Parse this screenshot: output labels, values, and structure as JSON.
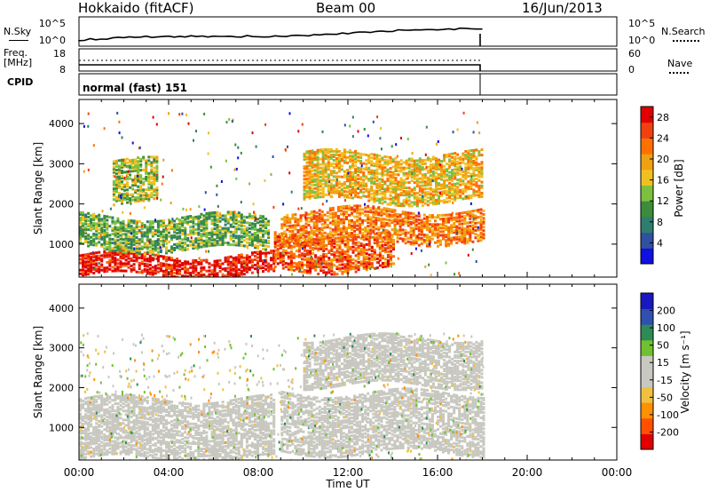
{
  "header": {
    "station": "Hokkaido (fitACF)",
    "beam": "Beam 00",
    "date": "16/Jun/2013"
  },
  "strip_labels": {
    "nsky": "N.Sky",
    "freq_line1": "Freq.",
    "freq_line2": "[MHz]",
    "cpid": "CPID",
    "nsearch": "N.Search",
    "nave": "Nave",
    "cpid_value": "normal (fast) 151"
  },
  "nsky_axis": {
    "left_ticks": [
      "10^5",
      "10^0"
    ],
    "right_ticks": [
      "10^5",
      "10^0"
    ]
  },
  "freq_axis": {
    "left_ticks": [
      "18",
      "8"
    ],
    "right_ticks": [
      "60",
      "0"
    ]
  },
  "colors": {
    "power": [
      "#1010e0",
      "#3050a0",
      "#2e7d6f",
      "#3c8c3c",
      "#7cc040",
      "#f0c020",
      "#f0a010",
      "#ff7000",
      "#f04010",
      "#e00000"
    ],
    "velocity": [
      "#e00000",
      "#ff5000",
      "#ff9000",
      "#f0c040",
      "#c8c8c0",
      "#c8c8c0",
      "#70c030",
      "#2e8b57",
      "#3050b0",
      "#1818c0"
    ],
    "ground_scatter": "#c8c8c0"
  },
  "chart_data": [
    {
      "type": "heatmap",
      "title": "Power",
      "xlabel": "Time UT",
      "ylabel": "Slant Range [km]",
      "xlim": [
        "00:00",
        "24:00"
      ],
      "ylim": [
        180,
        4600
      ],
      "x_ticks": [
        "00:00",
        "04:00",
        "08:00",
        "12:00",
        "16:00",
        "20:00",
        "00:00"
      ],
      "y_ticks": [
        1000,
        2000,
        3000,
        4000
      ],
      "colorbar": {
        "label": "Power [dB]",
        "ticks": [
          4,
          8,
          12,
          16,
          20,
          24,
          28
        ],
        "range": [
          0,
          30
        ]
      },
      "data_end_time": "18:00",
      "features": [
        {
          "kind": "band",
          "t_start": 0.0,
          "t_end": 8.7,
          "r_low": 250,
          "r_high": 750,
          "value_db": 28
        },
        {
          "kind": "band",
          "t_start": 8.7,
          "t_end": 14.0,
          "r_low": 400,
          "r_high": 1300,
          "value_db": 24
        },
        {
          "kind": "band",
          "t_start": 0.0,
          "t_end": 8.5,
          "r_low": 900,
          "r_high": 1750,
          "value_db": 12
        },
        {
          "kind": "band",
          "t_start": 9.0,
          "t_end": 18.0,
          "r_low": 1100,
          "r_high": 1900,
          "value_db": 22
        },
        {
          "kind": "band",
          "t_start": 10.0,
          "t_end": 18.0,
          "r_low": 2100,
          "r_high": 3300,
          "value_db": 18
        },
        {
          "kind": "band",
          "t_start": 1.5,
          "t_end": 3.5,
          "r_low": 2000,
          "r_high": 3100,
          "value_db": 14
        }
      ]
    },
    {
      "type": "heatmap",
      "title": "Velocity",
      "xlabel": "Time UT",
      "ylabel": "Slant Range [km]",
      "xlim": [
        "00:00",
        "24:00"
      ],
      "ylim": [
        180,
        4600
      ],
      "x_ticks": [
        "00:00",
        "04:00",
        "08:00",
        "12:00",
        "16:00",
        "20:00",
        "00:00"
      ],
      "y_ticks": [
        1000,
        2000,
        3000,
        4000
      ],
      "colorbar": {
        "label": "Velocity [m s⁻¹]",
        "ticks": [
          200,
          100,
          50,
          15,
          -15,
          -50,
          -100,
          -200
        ],
        "range": [
          -250,
          250
        ]
      },
      "data_end_time": "18:00",
      "features": [
        {
          "kind": "band",
          "t_start": 0.0,
          "t_end": 8.7,
          "r_low": 250,
          "r_high": 1750,
          "value": 0
        },
        {
          "kind": "band",
          "t_start": 9.0,
          "t_end": 18.0,
          "r_low": 400,
          "r_high": 1900,
          "value": 0
        },
        {
          "kind": "band",
          "t_start": 10.0,
          "t_end": 18.0,
          "r_low": 2100,
          "r_high": 3300,
          "value": 0
        },
        {
          "kind": "scatter",
          "t_start": 0.0,
          "t_end": 18.0,
          "r_low": 200,
          "r_high": 3400,
          "value_range": [
            -120,
            120
          ]
        }
      ]
    }
  ]
}
